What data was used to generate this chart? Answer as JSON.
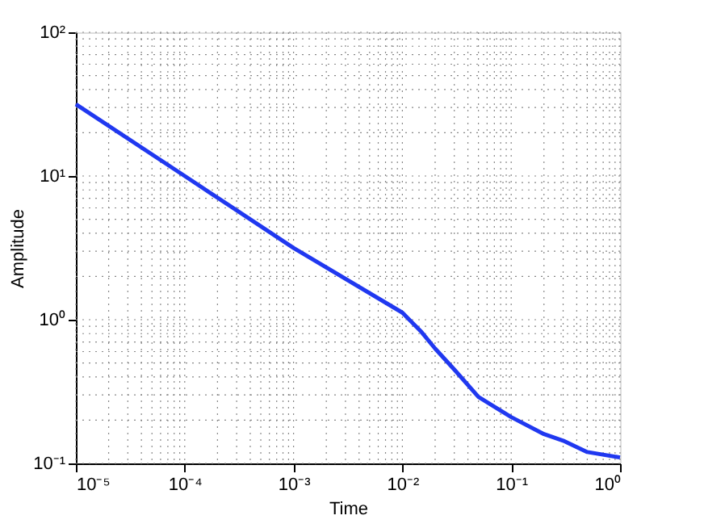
{
  "chart_data": {
    "type": "line",
    "xlabel": "Time",
    "ylabel": "Amplitude",
    "log": "xy",
    "grid": true,
    "line_style": "solid",
    "marker": "none",
    "x": [
      1e-05,
      0.0001,
      0.001,
      0.01,
      0.015,
      0.02,
      0.03,
      0.05,
      0.1,
      0.2,
      0.3,
      0.5,
      1
    ],
    "series": [
      {
        "color": "#2038f0",
        "values": [
          31.6,
          10,
          3.16,
          1.12,
          0.82,
          0.63,
          0.45,
          0.29,
          0.21,
          0.16,
          0.144,
          0.12,
          0.11
        ]
      }
    ],
    "xlim": [
      1e-05,
      1
    ],
    "ylim": [
      0.1,
      100
    ],
    "xticks": [
      {
        "value": 1e-05,
        "label": "10⁻⁵"
      },
      {
        "value": 0.0001,
        "label": "10⁻⁴"
      },
      {
        "value": 0.001,
        "label": "10⁻³"
      },
      {
        "value": 0.01,
        "label": "10⁻²"
      },
      {
        "value": 0.1,
        "label": "10⁻¹"
      },
      {
        "value": 1,
        "label": "10⁰"
      }
    ],
    "yticks": [
      {
        "value": 0.1,
        "label": "10⁻¹"
      },
      {
        "value": 1,
        "label": "10⁰"
      },
      {
        "value": 10,
        "label": "10¹"
      },
      {
        "value": 100,
        "label": "10²"
      }
    ]
  }
}
